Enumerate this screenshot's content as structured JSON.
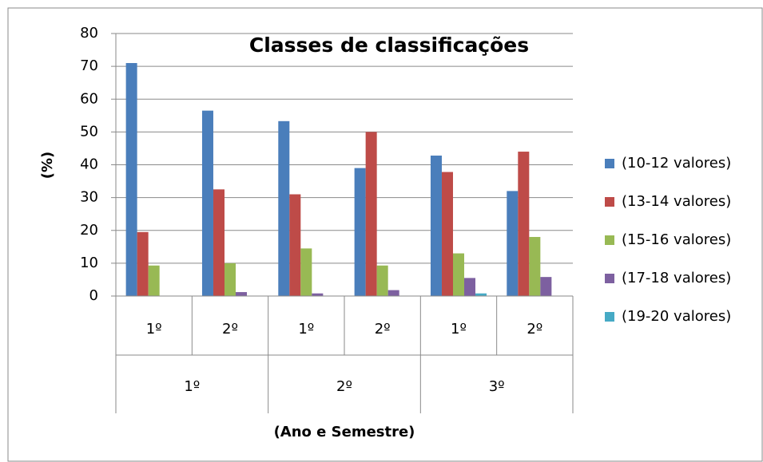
{
  "chart_data": {
    "type": "bar",
    "title": "Classes de classificações",
    "y_label": "(%)",
    "x_label": "(Ano e Semestre)",
    "categories": [
      "1º",
      "2º",
      "1º",
      "2º",
      "1º",
      "2º"
    ],
    "group_labels": [
      "1º",
      "2º",
      "3º"
    ],
    "series": [
      {
        "name": "(10-12 valores)",
        "color": "#4a7ebb",
        "values": [
          71,
          56.5,
          53.3,
          39,
          42.8,
          32
        ]
      },
      {
        "name": "(13-14 valores)",
        "color": "#be4b48",
        "values": [
          19.5,
          32.5,
          31,
          50,
          37.8,
          44
        ]
      },
      {
        "name": "(15-16 valores)",
        "color": "#98b954",
        "values": [
          9.3,
          10,
          14.5,
          9.3,
          13,
          18
        ]
      },
      {
        "name": "(17-18 valores)",
        "color": "#7d60a0",
        "values": [
          0,
          1.2,
          0.8,
          1.8,
          5.5,
          5.8
        ]
      },
      {
        "name": "(19-20 valores)",
        "color": "#46aac5",
        "values": [
          0,
          0,
          0,
          0,
          0.8,
          0
        ]
      }
    ],
    "ylim": [
      0,
      80
    ],
    "yticks": [
      0,
      10,
      20,
      30,
      40,
      50,
      60,
      70,
      80
    ],
    "grid": true,
    "legend": "right"
  }
}
